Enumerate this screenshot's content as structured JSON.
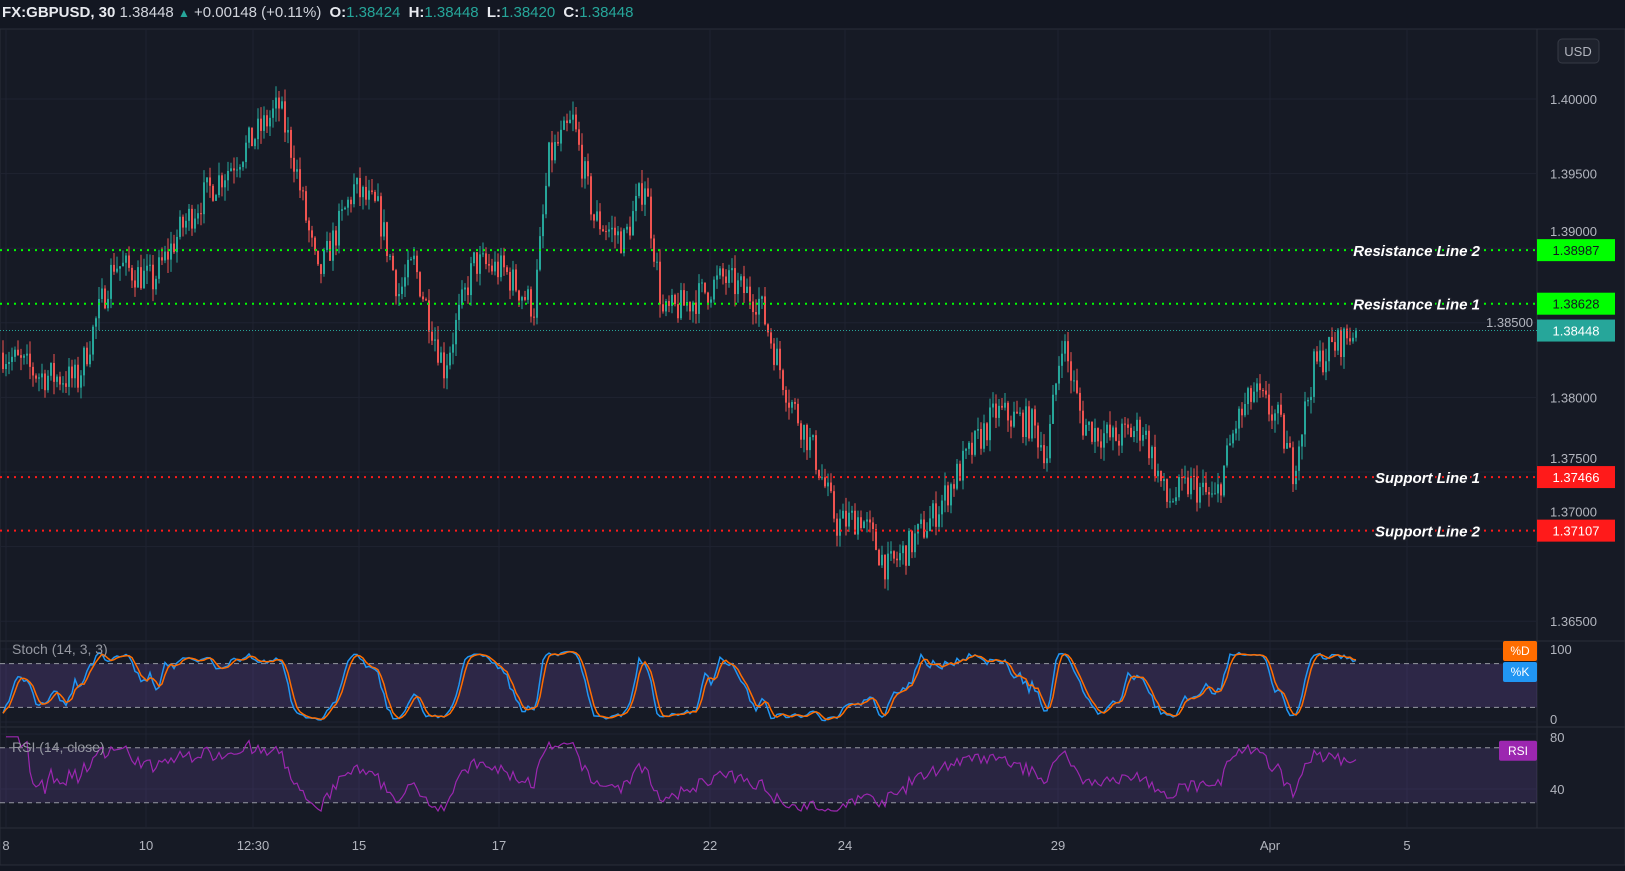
{
  "header": {
    "symbol": "FX:GBPUSD, 30",
    "last": "1.38448",
    "change": "+0.00148 (+0.11%)",
    "o_label": "O:",
    "o": "1.38424",
    "h_label": "H:",
    "h": "1.38448",
    "l_label": "L:",
    "l": "1.38420",
    "c_label": "C:",
    "c": "1.38448",
    "direction_icon": "triangle-up-icon"
  },
  "currency_button": "USD",
  "colors": {
    "up": "#26a69a",
    "down": "#ef5350",
    "resistance": "#00ff00",
    "support": "#ff1a1a",
    "current": "#26a69a",
    "stoch_k": "#2196f3",
    "stoch_d": "#ff6d00",
    "rsi": "#9c27b0"
  },
  "chart_data": [
    {
      "type": "candlestick",
      "title": "FX:GBPUSD, 30",
      "y_ticks": [
        "1.40000",
        "1.39500",
        "1.39000",
        "1.38500",
        "1.38000",
        "1.37500",
        "1.37000",
        "1.36500"
      ],
      "ylim": [
        1.3625,
        1.4063
      ],
      "x_ticks": [
        "8",
        "10",
        "12:30",
        "15",
        "17",
        "22",
        "24",
        "29",
        "Apr",
        "5"
      ],
      "approx_close_path": [
        [
          0,
          1.383
        ],
        [
          12,
          1.3815
        ],
        [
          25,
          1.3812
        ],
        [
          37,
          1.389
        ],
        [
          50,
          1.3878
        ],
        [
          60,
          1.3915
        ],
        [
          67,
          1.3935
        ],
        [
          80,
          1.3965
        ],
        [
          92,
          1.3995
        ],
        [
          97,
          1.396
        ],
        [
          105,
          1.388
        ],
        [
          117,
          1.394
        ],
        [
          125,
          1.3925
        ],
        [
          132,
          1.387
        ],
        [
          137,
          1.389
        ],
        [
          147,
          1.382
        ],
        [
          157,
          1.389
        ],
        [
          167,
          1.3885
        ],
        [
          177,
          1.386
        ],
        [
          182,
          1.396
        ],
        [
          190,
          1.3985
        ],
        [
          197,
          1.392
        ],
        [
          207,
          1.3905
        ],
        [
          214,
          1.3945
        ],
        [
          220,
          1.3855
        ],
        [
          230,
          1.3865
        ],
        [
          240,
          1.388
        ],
        [
          252,
          1.3865
        ],
        [
          262,
          1.38
        ],
        [
          270,
          1.3765
        ],
        [
          278,
          1.3715
        ],
        [
          286,
          1.372
        ],
        [
          295,
          1.3685
        ],
        [
          302,
          1.37
        ],
        [
          310,
          1.372
        ],
        [
          320,
          1.3755
        ],
        [
          331,
          1.379
        ],
        [
          343,
          1.3782
        ],
        [
          348,
          1.3762
        ],
        [
          353,
          1.384
        ],
        [
          360,
          1.3782
        ],
        [
          370,
          1.3772
        ],
        [
          380,
          1.378
        ],
        [
          388,
          1.373
        ],
        [
          396,
          1.3742
        ],
        [
          404,
          1.373
        ],
        [
          411,
          1.3782
        ],
        [
          417,
          1.3803
        ],
        [
          425,
          1.3785
        ],
        [
          430,
          1.3752
        ],
        [
          437,
          1.382
        ],
        [
          442,
          1.3832
        ],
        [
          451,
          1.38448
        ]
      ],
      "lines": [
        {
          "name": "Resistance Line 2",
          "value": 1.38987,
          "label": "1.38987",
          "kind": "resistance"
        },
        {
          "name": "Resistance Line 1",
          "value": 1.38628,
          "label": "1.38628",
          "kind": "resistance"
        },
        {
          "name": "",
          "value": 1.38448,
          "label": "1.38448",
          "kind": "current"
        },
        {
          "name": "Support Line 1",
          "value": 1.37466,
          "label": "1.37466",
          "kind": "support"
        },
        {
          "name": "Support Line 2",
          "value": 1.37107,
          "label": "1.37107",
          "kind": "support"
        }
      ]
    },
    {
      "type": "line",
      "title": "Stoch (14, 3, 3)",
      "y_ticks": [
        "100",
        "0"
      ],
      "bands": [
        20,
        80
      ],
      "ylim": [
        0,
        100
      ],
      "series": [
        {
          "name": "%K"
        },
        {
          "name": "%D"
        }
      ]
    },
    {
      "type": "line",
      "title": "RSI (14, close)",
      "y_ticks": [
        "80",
        "40"
      ],
      "bands": [
        30,
        70
      ],
      "series": [
        {
          "name": "RSI"
        }
      ]
    }
  ]
}
